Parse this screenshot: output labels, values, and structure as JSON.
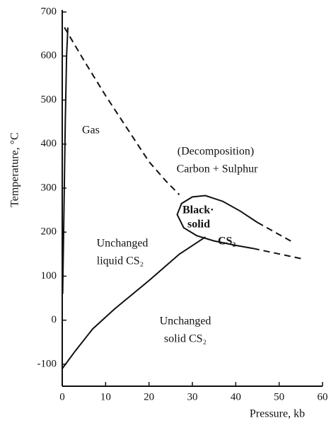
{
  "chart_data": {
    "type": "line",
    "xlabel": "Pressure, kb",
    "ylabel": "Temperature, °C",
    "xlim": [
      0,
      60
    ],
    "xticks": [
      0,
      10,
      20,
      30,
      40,
      50,
      60
    ],
    "ylim": [
      -150,
      700
    ],
    "yticks": [
      -100,
      0,
      100,
      200,
      300,
      400,
      500,
      600,
      700
    ],
    "annotations": [
      "Gas",
      "(Decomposition)",
      "Carbon + Sulphur",
      "Black·",
      "solid",
      "CS₂",
      "Unchanged",
      "liquid CS₂",
      "Unchanged",
      "solid CS₂"
    ],
    "series": [
      {
        "color": "#111111",
        "style": "solid",
        "x": [
          0.1,
          0.4,
          0.7,
          1.0,
          1.3
        ],
        "values": [
          60,
          250,
          450,
          600,
          665
        ]
      },
      {
        "color": "#111111",
        "style": "dashed",
        "x": [
          0.5,
          5,
          10,
          15,
          20,
          24,
          27
        ],
        "values": [
          665,
          590,
          510,
          435,
          360,
          315,
          285
        ]
      },
      {
        "color": "#111111",
        "style": "solid",
        "x": [
          0,
          3,
          7,
          12,
          20,
          27,
          33
        ],
        "values": [
          -110,
          -70,
          -20,
          25,
          90,
          150,
          189
        ]
      },
      {
        "color": "#111111",
        "style": "solid",
        "x": [
          45,
          41,
          37,
          33,
          30,
          27.5,
          26.5,
          28,
          31,
          35,
          40,
          44
        ],
        "values": [
          222,
          248,
          270,
          283,
          280,
          265,
          240,
          210,
          192,
          180,
          170,
          163
        ]
      },
      {
        "color": "#111111",
        "style": "dashed",
        "x": [
          45,
          53
        ],
        "values": [
          222,
          178
        ]
      },
      {
        "color": "#111111",
        "style": "dashed",
        "x": [
          44,
          55
        ],
        "values": [
          163,
          140
        ]
      }
    ]
  }
}
